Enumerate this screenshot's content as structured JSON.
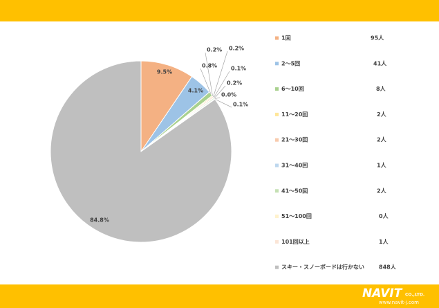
{
  "chart_data": {
    "type": "pie",
    "categories": [
      "1回",
      "2〜5回",
      "6〜10回",
      "11〜20回",
      "21〜30回",
      "31〜40回",
      "41〜50回",
      "51〜100回",
      "101回以上",
      "スキー・スノーボードは行かない"
    ],
    "values": [
      9.5,
      4.1,
      0.8,
      0.2,
      0.2,
      0.1,
      0.2,
      0.0,
      0.1,
      84.8
    ],
    "value_labels": [
      "9.5%",
      "4.1%",
      "0.8%",
      "0.2%",
      "0.2%",
      "0.1%",
      "0.2%",
      "0.0%",
      "0.1%",
      "84.8%"
    ],
    "count_labels": [
      "95人",
      "41人",
      "8人",
      "2人",
      "2人",
      "1人",
      "2人",
      "0人",
      "1人",
      "848人"
    ],
    "colors": [
      "#f4b183",
      "#9dc3e6",
      "#a9d18e",
      "#ffe699",
      "#f8cbad",
      "#bdd7ee",
      "#c5e0b4",
      "#fff2cc",
      "#fbe5d6",
      "#bfbfbf"
    ],
    "legend": "right"
  },
  "footer": {
    "logo": "NAVIT",
    "company": "CO.,LTD.",
    "url": "www.navit-j.com"
  }
}
